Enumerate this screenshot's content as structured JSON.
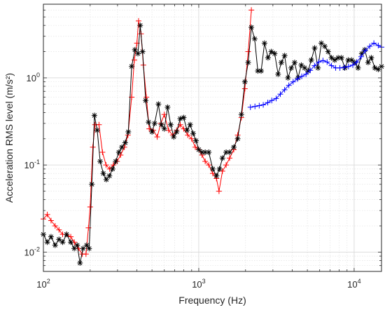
{
  "chart_data": {
    "type": "line",
    "title": "",
    "xlabel": "Frequency (Hz)",
    "ylabel": "Acceleration RMS level (m/s²)",
    "xscale": "log",
    "yscale": "log",
    "xlim": [
      100,
      15000
    ],
    "ylim": [
      0.006,
      7
    ],
    "grid": true,
    "legend": "none",
    "x_ticks": [
      {
        "value": 100,
        "base": "10",
        "exp": "2"
      },
      {
        "value": 1000,
        "base": "10",
        "exp": "3"
      },
      {
        "value": 10000,
        "base": "10",
        "exp": "4"
      }
    ],
    "y_ticks": [
      {
        "value": 0.01,
        "base": "10",
        "exp": "-2"
      },
      {
        "value": 0.1,
        "base": "10",
        "exp": "-1"
      },
      {
        "value": 1,
        "base": "10",
        "exp": "0"
      }
    ],
    "series": [
      {
        "color": "#ff0000",
        "marker": "plus",
        "points": [
          [
            100,
            0.024
          ],
          [
            106,
            0.027
          ],
          [
            112,
            0.023
          ],
          [
            119,
            0.02
          ],
          [
            126,
            0.018
          ],
          [
            133,
            0.016
          ],
          [
            141,
            0.016
          ],
          [
            150,
            0.015
          ],
          [
            158,
            0.013
          ],
          [
            168,
            0.011
          ],
          [
            178,
            0.0095
          ],
          [
            188,
            0.0095
          ],
          [
            195,
            0.019
          ],
          [
            200,
            0.033
          ],
          [
            208,
            0.16
          ],
          [
            215,
            0.29
          ],
          [
            228,
            0.29
          ],
          [
            240,
            0.14
          ],
          [
            253,
            0.1
          ],
          [
            267,
            0.09
          ],
          [
            282,
            0.1
          ],
          [
            298,
            0.11
          ],
          [
            314,
            0.13
          ],
          [
            332,
            0.16
          ],
          [
            350,
            0.22
          ],
          [
            370,
            0.6
          ],
          [
            385,
            1.6
          ],
          [
            400,
            2.5
          ],
          [
            410,
            4.5
          ],
          [
            425,
            3.2
          ],
          [
            440,
            1.4
          ],
          [
            460,
            0.6
          ],
          [
            480,
            0.26
          ],
          [
            510,
            0.25
          ],
          [
            540,
            0.21
          ],
          [
            570,
            0.3
          ],
          [
            600,
            0.38
          ],
          [
            640,
            0.25
          ],
          [
            680,
            0.22
          ],
          [
            720,
            0.25
          ],
          [
            760,
            0.29
          ],
          [
            800,
            0.26
          ],
          [
            850,
            0.22
          ],
          [
            900,
            0.2
          ],
          [
            950,
            0.16
          ],
          [
            1000,
            0.15
          ],
          [
            1050,
            0.13
          ],
          [
            1100,
            0.11
          ],
          [
            1160,
            0.1
          ],
          [
            1230,
            0.08
          ],
          [
            1300,
            0.07
          ],
          [
            1350,
            0.05
          ],
          [
            1420,
            0.085
          ],
          [
            1500,
            0.1
          ],
          [
            1580,
            0.12
          ],
          [
            1680,
            0.15
          ],
          [
            1780,
            0.22
          ],
          [
            1880,
            0.35
          ],
          [
            1980,
            0.75
          ],
          [
            2080,
            2.0
          ],
          [
            2180,
            6.0
          ]
        ]
      },
      {
        "color": "#000000",
        "marker": "asterisk",
        "points": [
          [
            100,
            0.016
          ],
          [
            106,
            0.013
          ],
          [
            112,
            0.015
          ],
          [
            119,
            0.012
          ],
          [
            126,
            0.014
          ],
          [
            133,
            0.013
          ],
          [
            141,
            0.016
          ],
          [
            150,
            0.013
          ],
          [
            158,
            0.011
          ],
          [
            165,
            0.012
          ],
          [
            172,
            0.0075
          ],
          [
            180,
            0.011
          ],
          [
            190,
            0.012
          ],
          [
            197,
            0.011
          ],
          [
            205,
            0.06
          ],
          [
            213,
            0.37
          ],
          [
            222,
            0.25
          ],
          [
            232,
            0.11
          ],
          [
            243,
            0.08
          ],
          [
            254,
            0.068
          ],
          [
            266,
            0.075
          ],
          [
            279,
            0.09
          ],
          [
            292,
            0.11
          ],
          [
            306,
            0.14
          ],
          [
            320,
            0.16
          ],
          [
            336,
            0.18
          ],
          [
            352,
            0.24
          ],
          [
            370,
            1.35
          ],
          [
            388,
            2.1
          ],
          [
            406,
            1.9
          ],
          [
            420,
            4.0
          ],
          [
            435,
            2.0
          ],
          [
            455,
            0.55
          ],
          [
            475,
            0.31
          ],
          [
            500,
            0.24
          ],
          [
            520,
            0.3
          ],
          [
            550,
            0.5
          ],
          [
            575,
            0.29
          ],
          [
            600,
            0.26
          ],
          [
            630,
            0.46
          ],
          [
            660,
            0.29
          ],
          [
            690,
            0.21
          ],
          [
            720,
            0.24
          ],
          [
            760,
            0.34
          ],
          [
            800,
            0.35
          ],
          [
            840,
            0.25
          ],
          [
            880,
            0.29
          ],
          [
            920,
            0.23
          ],
          [
            960,
            0.19
          ],
          [
            1000,
            0.15
          ],
          [
            1050,
            0.14
          ],
          [
            1100,
            0.14
          ],
          [
            1160,
            0.14
          ],
          [
            1230,
            0.09
          ],
          [
            1300,
            0.075
          ],
          [
            1360,
            0.09
          ],
          [
            1420,
            0.12
          ],
          [
            1500,
            0.14
          ],
          [
            1580,
            0.14
          ],
          [
            1680,
            0.16
          ],
          [
            1780,
            0.2
          ],
          [
            1880,
            0.38
          ],
          [
            1980,
            0.9
          ],
          [
            2080,
            1.5
          ],
          [
            2180,
            3.8
          ],
          [
            2290,
            2.8
          ],
          [
            2400,
            1.2
          ],
          [
            2520,
            1.2
          ],
          [
            2650,
            2.5
          ],
          [
            2790,
            1.7
          ],
          [
            2930,
            2.0
          ],
          [
            3080,
            1.9
          ],
          [
            3240,
            1.1
          ],
          [
            3400,
            1.5
          ],
          [
            3570,
            1.8
          ],
          [
            3750,
            1.0
          ],
          [
            3940,
            1.3
          ],
          [
            4140,
            1.5
          ],
          [
            4350,
            1.0
          ],
          [
            4570,
            1.4
          ],
          [
            4800,
            1.3
          ],
          [
            5050,
            1.2
          ],
          [
            5300,
            1.6
          ],
          [
            5570,
            2.2
          ],
          [
            5850,
            1.3
          ],
          [
            6150,
            2.5
          ],
          [
            6470,
            2.3
          ],
          [
            6800,
            2.0
          ],
          [
            7150,
            1.7
          ],
          [
            7500,
            1.6
          ],
          [
            7890,
            1.7
          ],
          [
            8290,
            1.7
          ],
          [
            8710,
            1.3
          ],
          [
            9160,
            1.6
          ],
          [
            9630,
            1.6
          ],
          [
            10100,
            1.5
          ],
          [
            10600,
            1.3
          ],
          [
            11200,
            1.9
          ],
          [
            11700,
            2.1
          ],
          [
            12300,
            1.5
          ],
          [
            12900,
            1.7
          ],
          [
            13600,
            1.3
          ],
          [
            14300,
            1.25
          ],
          [
            15000,
            1.35
          ]
        ]
      },
      {
        "color": "#0000ff",
        "marker": "plus",
        "points": [
          [
            2150,
            0.46
          ],
          [
            2300,
            0.47
          ],
          [
            2450,
            0.48
          ],
          [
            2600,
            0.49
          ],
          [
            2780,
            0.52
          ],
          [
            2950,
            0.55
          ],
          [
            3150,
            0.58
          ],
          [
            3350,
            0.65
          ],
          [
            3570,
            0.73
          ],
          [
            3800,
            0.82
          ],
          [
            4050,
            0.9
          ],
          [
            4320,
            0.97
          ],
          [
            4600,
            1.04
          ],
          [
            4900,
            1.1
          ],
          [
            5220,
            1.22
          ],
          [
            5560,
            1.38
          ],
          [
            5920,
            1.52
          ],
          [
            6300,
            1.58
          ],
          [
            6700,
            1.52
          ],
          [
            7150,
            1.38
          ],
          [
            7600,
            1.3
          ],
          [
            8100,
            1.3
          ],
          [
            8630,
            1.32
          ],
          [
            9200,
            1.35
          ],
          [
            9800,
            1.4
          ],
          [
            10400,
            1.52
          ],
          [
            11100,
            1.75
          ],
          [
            11800,
            2.05
          ],
          [
            12600,
            2.3
          ],
          [
            13400,
            2.5
          ],
          [
            14300,
            2.35
          ],
          [
            15000,
            2.25
          ]
        ]
      }
    ]
  }
}
